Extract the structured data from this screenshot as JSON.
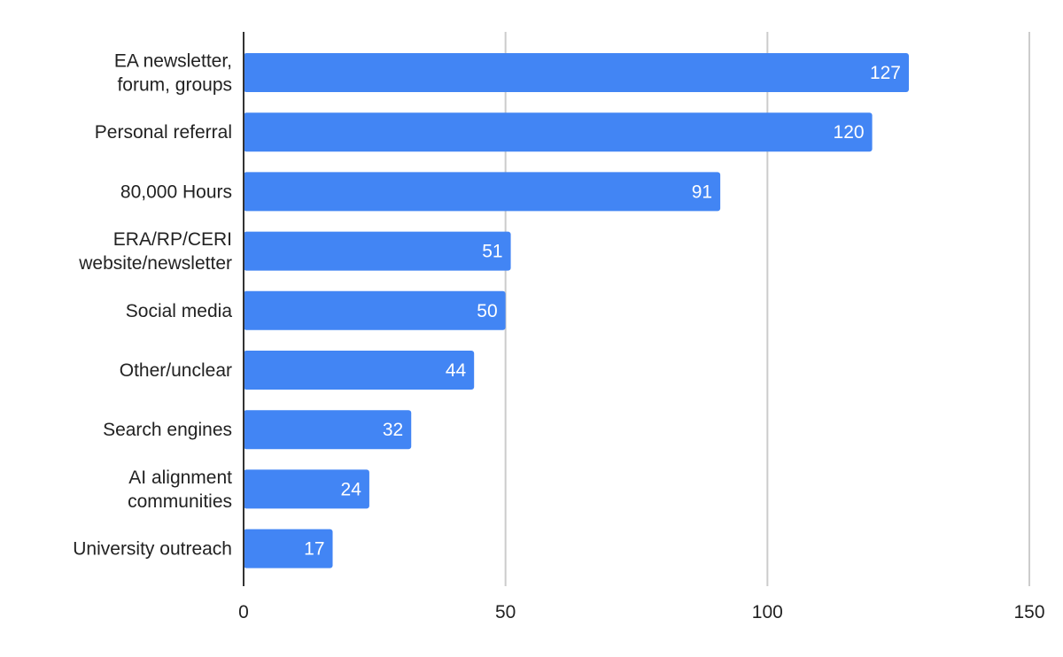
{
  "chart_data": {
    "type": "bar",
    "orientation": "horizontal",
    "title": "",
    "xlabel": "",
    "ylabel": "",
    "categories": [
      [
        "EA newsletter,",
        "forum, groups"
      ],
      [
        "Personal referral"
      ],
      [
        "80,000 Hours"
      ],
      [
        "ERA/RP/CERI",
        "website/newsletter"
      ],
      [
        "Social media"
      ],
      [
        "Other/unclear"
      ],
      [
        "Search engines"
      ],
      [
        "AI alignment",
        "communities"
      ],
      [
        "University outreach"
      ]
    ],
    "values": [
      127,
      120,
      91,
      51,
      50,
      44,
      32,
      24,
      17
    ],
    "xlim": [
      0,
      150
    ],
    "xticks": [
      0,
      50,
      100,
      150
    ],
    "grid": true,
    "bar_color": "#4285f4",
    "value_label_color": "#ffffff"
  }
}
